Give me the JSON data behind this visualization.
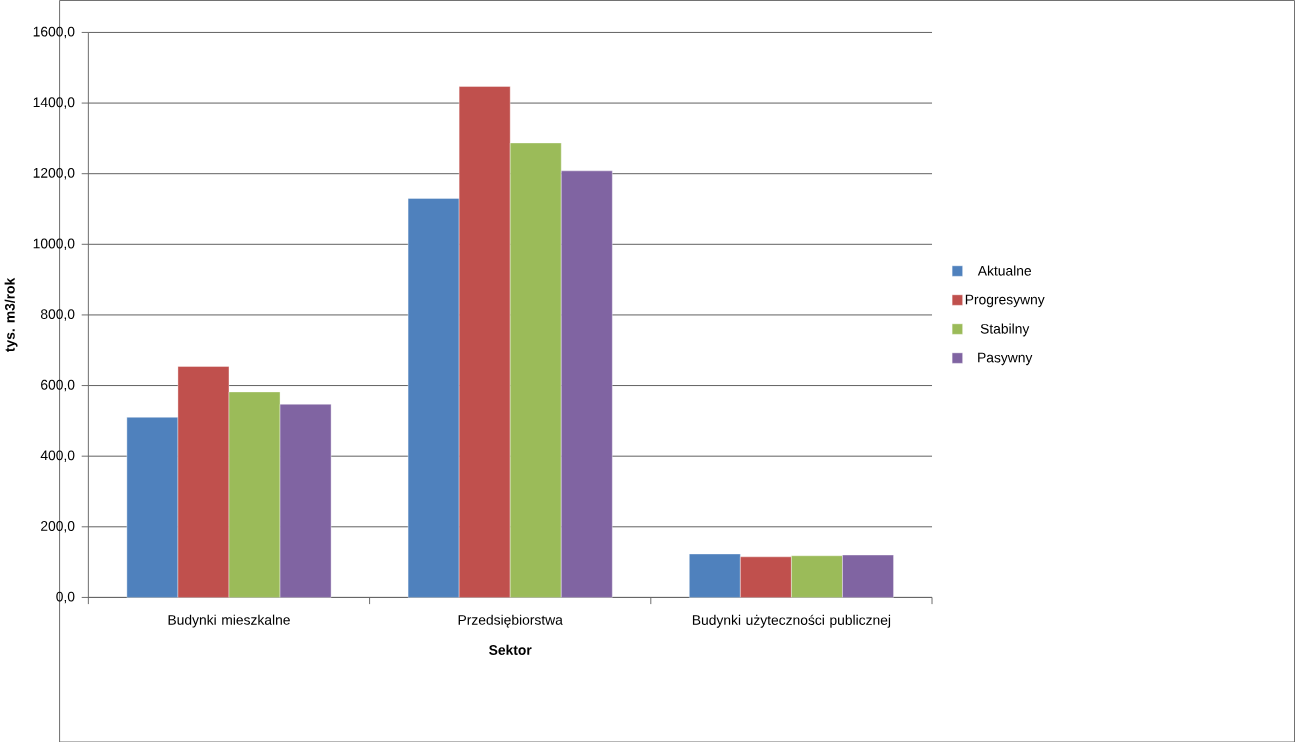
{
  "chart_data": {
    "type": "bar",
    "xlabel": "Sektor",
    "ylabel": "tys. m3/rok",
    "categories": [
      "Budynki mieszkalne",
      "Przedsiębiorstwa",
      "Budynki użyteczności publicznej"
    ],
    "series": [
      {
        "name": "Aktualne",
        "color": "#4f81bd",
        "values": [
          510,
          1130,
          123
        ]
      },
      {
        "name": "Progresywny",
        "color": "#c0504d",
        "values": [
          654,
          1447,
          115
        ]
      },
      {
        "name": "Stabilny",
        "color": "#9bbb59",
        "values": [
          582,
          1287,
          118
        ]
      },
      {
        "name": "Pasywny",
        "color": "#8064a2",
        "values": [
          547,
          1208,
          120
        ]
      }
    ],
    "ylim": [
      0,
      1600
    ],
    "yticks": [
      {
        "value": 0,
        "label": "0,0"
      },
      {
        "value": 200,
        "label": "200,0"
      },
      {
        "value": 400,
        "label": "400,0"
      },
      {
        "value": 600,
        "label": "600,0"
      },
      {
        "value": 800,
        "label": "800,0"
      },
      {
        "value": 1000,
        "label": "1000,0"
      },
      {
        "value": 1200,
        "label": "1200,0"
      },
      {
        "value": 1400,
        "label": "1400,0"
      },
      {
        "value": 1600,
        "label": "1600,0"
      }
    ],
    "grid": "y",
    "legend": "right"
  }
}
